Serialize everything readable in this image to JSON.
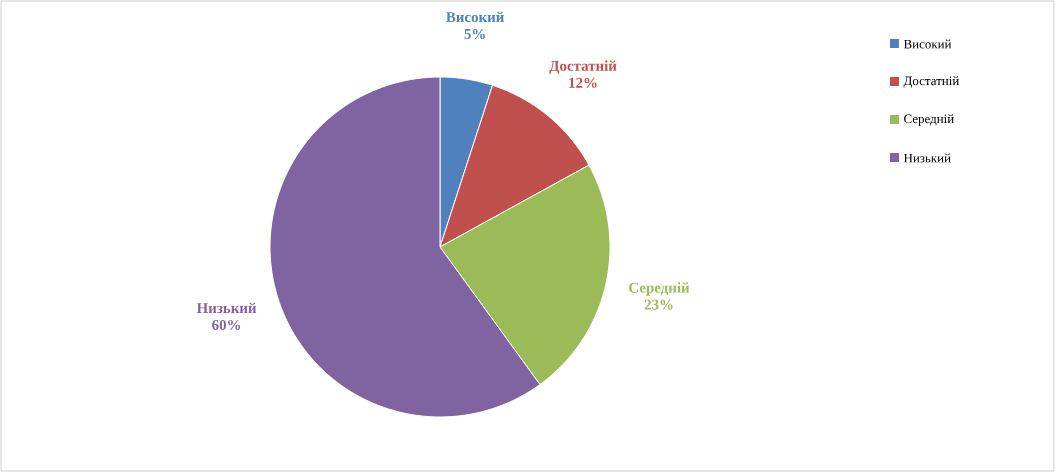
{
  "chart_data": {
    "type": "pie",
    "categories": [
      "Високий",
      "Достатній",
      "Середній",
      "Низький"
    ],
    "values": [
      5,
      12,
      23,
      60
    ],
    "value_labels": [
      "5%",
      "12%",
      "23%",
      "60%"
    ],
    "colors": [
      "#4f81bd",
      "#c0504d",
      "#9bbb59",
      "#8064a2"
    ],
    "legend": "top right"
  }
}
